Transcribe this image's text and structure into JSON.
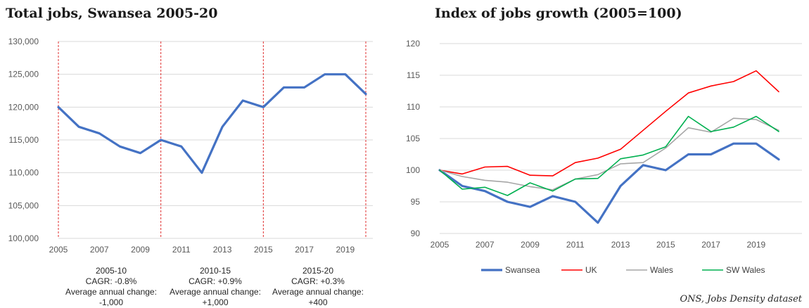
{
  "chart_data": [
    {
      "type": "line",
      "title": "Total jobs, Swansea 2005-20",
      "x": [
        2005,
        2006,
        2007,
        2008,
        2009,
        2010,
        2011,
        2012,
        2013,
        2014,
        2015,
        2016,
        2017,
        2018,
        2019,
        2020
      ],
      "x_tick_labels": [
        "2005",
        "2007",
        "2009",
        "2011",
        "2013",
        "2015",
        "2017",
        "2019"
      ],
      "series": [
        {
          "values": [
            120000,
            117000,
            116000,
            114000,
            113000,
            115000,
            114000,
            110000,
            117000,
            121000,
            120000,
            123000,
            123000,
            125000,
            125000,
            122000
          ]
        }
      ],
      "ylim": [
        100000,
        130000
      ],
      "y_tick_labels": [
        "100,000",
        "105,000",
        "110,000",
        "115,000",
        "120,000",
        "125,000",
        "130,000"
      ],
      "grid": "horizontal",
      "period_markers": [
        2005,
        2010,
        2015,
        2020
      ],
      "colors": {
        "line": "#4472C4",
        "divider": "#E03030",
        "grid": "#D9D9D9"
      },
      "annotations": [
        {
          "period": "2005-10",
          "cagr": "CAGR: -0.8%",
          "label": "Average annual change:",
          "value": "-1,000"
        },
        {
          "period": "2010-15",
          "cagr": "CAGR: +0.9%",
          "label": "Average annual change:",
          "value": "+1,000"
        },
        {
          "period": "2015-20",
          "cagr": "CAGR: +0.3%",
          "label": "Average annual change:",
          "value": "+400"
        }
      ]
    },
    {
      "type": "line",
      "title": "Index of jobs growth (2005=100)",
      "x": [
        2005,
        2006,
        2007,
        2008,
        2009,
        2010,
        2011,
        2012,
        2013,
        2014,
        2015,
        2016,
        2017,
        2018,
        2019,
        2020
      ],
      "x_tick_labels": [
        "2005",
        "2007",
        "2009",
        "2011",
        "2013",
        "2015",
        "2017",
        "2019"
      ],
      "series": [
        {
          "name": "Swansea",
          "color": "#4472C4",
          "values": [
            100,
            97.5,
            96.7,
            95,
            94.2,
            95.9,
            95,
            91.7,
            97.5,
            100.8,
            100,
            102.5,
            102.5,
            104.2,
            104.2,
            101.7
          ]
        },
        {
          "name": "UK",
          "color": "#FF0000",
          "values": [
            100,
            99.4,
            100.5,
            100.6,
            99.2,
            99.1,
            101.2,
            101.9,
            103.3,
            106.3,
            109.3,
            112.2,
            113.3,
            114,
            115.7,
            112.4
          ]
        },
        {
          "name": "Wales",
          "color": "#A6A6A6",
          "values": [
            100,
            99,
            98.4,
            98.1,
            97.4,
            96.9,
            98.6,
            99.3,
            101,
            101.2,
            103.5,
            106.7,
            106,
            108.2,
            108,
            106.3
          ]
        },
        {
          "name": "SW Wales",
          "color": "#00B050",
          "values": [
            100,
            97,
            97.3,
            96,
            98,
            96.7,
            98.6,
            98.7,
            101.8,
            102.4,
            103.7,
            108.5,
            106.1,
            106.8,
            108.5,
            106.1
          ]
        }
      ],
      "ylim": [
        90,
        120
      ],
      "y_tick_labels": [
        "90",
        "95",
        "100",
        "105",
        "110",
        "115",
        "120"
      ],
      "grid": "horizontal",
      "legend": "bottom"
    }
  ],
  "source": "ONS, Jobs Density dataset"
}
